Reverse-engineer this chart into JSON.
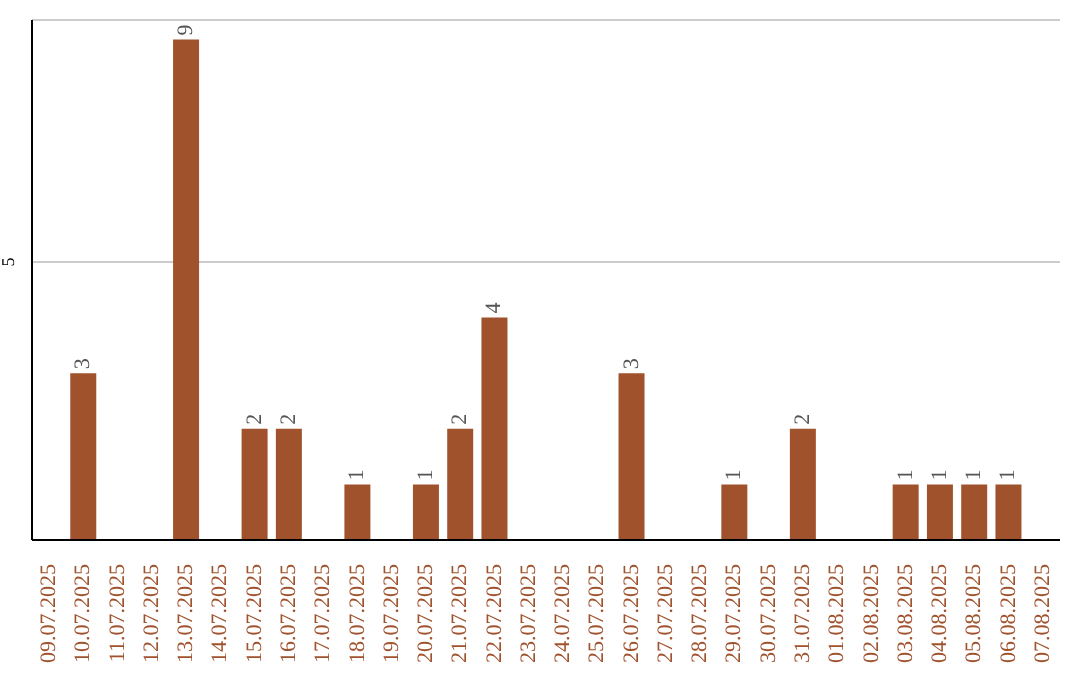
{
  "chart_data": {
    "type": "bar",
    "categories": [
      "09.07.2025",
      "10.07.2025",
      "11.07.2025",
      "12.07.2025",
      "13.07.2025",
      "14.07.2025",
      "15.07.2025",
      "16.07.2025",
      "17.07.2025",
      "18.07.2025",
      "19.07.2025",
      "20.07.2025",
      "21.07.2025",
      "22.07.2025",
      "23.07.2025",
      "24.07.2025",
      "25.07.2025",
      "26.07.2025",
      "27.07.2025",
      "28.07.2025",
      "29.07.2025",
      "30.07.2025",
      "31.07.2025",
      "01.08.2025",
      "02.08.2025",
      "03.08.2025",
      "04.08.2025",
      "05.08.2025",
      "06.08.2025",
      "07.08.2025"
    ],
    "values": [
      0,
      3,
      0,
      0,
      9,
      0,
      2,
      2,
      0,
      1,
      0,
      1,
      2,
      4,
      0,
      0,
      0,
      3,
      0,
      0,
      1,
      0,
      2,
      0,
      0,
      1,
      1,
      1,
      1,
      0
    ],
    "value_labels": [
      null,
      "3",
      null,
      null,
      "9",
      null,
      "2",
      "2",
      null,
      "1",
      null,
      "1",
      "2",
      "4",
      null,
      null,
      null,
      "3",
      null,
      null,
      "1",
      null,
      "2",
      null,
      null,
      "1",
      "1",
      "1",
      "1",
      null
    ],
    "color": "#a0522d",
    "ylim": [
      0,
      9.35
    ],
    "yticks": [
      5
    ],
    "grid": "y"
  }
}
